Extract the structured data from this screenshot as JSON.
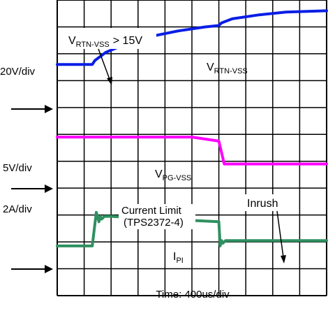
{
  "chart_data": {
    "type": "line",
    "title": "",
    "xlabel": "Time: 400us/div",
    "x_divisions": 10,
    "y_divisions": 11,
    "grid": true,
    "channels": [
      {
        "scale": "20V/div",
        "name_main": "V",
        "name_sub": "RTN-VSS",
        "color": "#0a1ee6"
      },
      {
        "scale": "5V/div",
        "name_main": "V",
        "name_sub": "PG-VSS",
        "color": "#ff00ff"
      },
      {
        "scale": "2A/div",
        "name_main": "I",
        "name_sub": "PI",
        "color": "#2e9060"
      }
    ],
    "series": [
      {
        "color": "#0a1ee6",
        "x_div": [
          0,
          1.3,
          1.4,
          1.8,
          2.5,
          3.5,
          4.5,
          5.5,
          6.0,
          6.1,
          6.5,
          7.5,
          8.5,
          10
        ],
        "y_div": [
          8.6,
          8.6,
          8.75,
          9.05,
          9.35,
          9.65,
          9.85,
          10.0,
          10.05,
          10.15,
          10.3,
          10.45,
          10.55,
          10.6
        ]
      },
      {
        "color": "#ff00ff",
        "x_div": [
          0,
          5.0,
          6.0,
          6.2,
          10
        ],
        "y_div": [
          5.9,
          5.9,
          5.75,
          4.9,
          4.9
        ]
      },
      {
        "color": "#2e9060",
        "x_div": [
          0,
          1.3,
          1.45,
          1.55,
          1.6,
          1.65,
          1.75,
          2.0,
          6.0,
          6.05,
          6.1,
          6.15,
          6.25,
          10
        ],
        "y_div": [
          1.85,
          1.85,
          3.1,
          2.75,
          2.95,
          2.85,
          2.95,
          2.95,
          2.75,
          1.85,
          2.05,
          1.95,
          2.05,
          2.05
        ]
      }
    ],
    "annotations": {
      "threshold_main": "V",
      "threshold_sub": "RTN-VSS",
      "threshold_rest": "> 15V",
      "current_limit_line1": "Current Limit",
      "current_limit_line2": "(TPS2372-4)",
      "inrush": "Inrush"
    }
  }
}
